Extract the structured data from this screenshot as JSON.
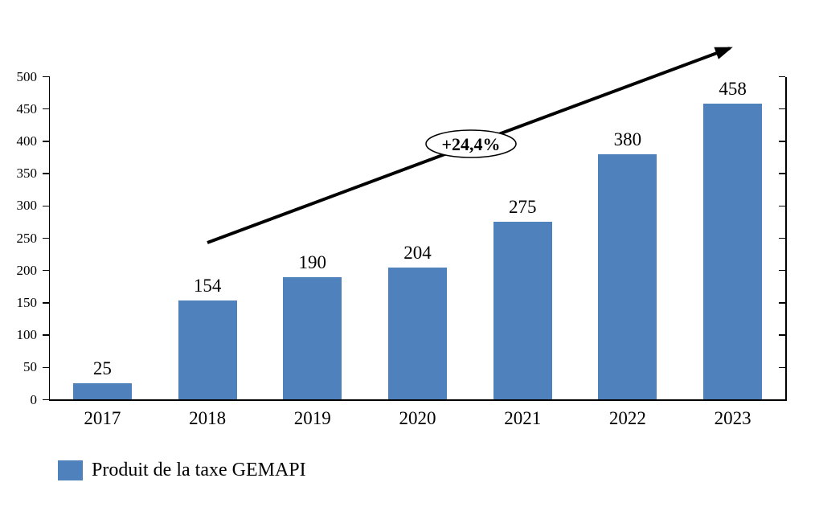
{
  "chart_data": {
    "type": "bar",
    "title": "",
    "xlabel": "",
    "ylabel": "",
    "categories": [
      "2017",
      "2018",
      "2019",
      "2020",
      "2021",
      "2022",
      "2023"
    ],
    "series": [
      {
        "name": "Produit de la taxe GEMAPI",
        "values": [
          25,
          154,
          190,
          204,
          275,
          380,
          458
        ],
        "color": "#4F81BD"
      }
    ],
    "value_labels": true,
    "ylim": [
      0,
      500
    ],
    "yticks": [
      0,
      50,
      100,
      150,
      200,
      250,
      300,
      350,
      400,
      450,
      500
    ],
    "grid": false,
    "secondary_right_axis": {
      "visible": true,
      "labels": false
    },
    "legend": {
      "position": "bottom-left"
    },
    "annotations": [
      {
        "type": "ellipse-label",
        "text": "+24,4%",
        "fill": "#ffffff",
        "border": "#000000"
      },
      {
        "type": "trend-arrow",
        "color": "#000000"
      }
    ]
  }
}
